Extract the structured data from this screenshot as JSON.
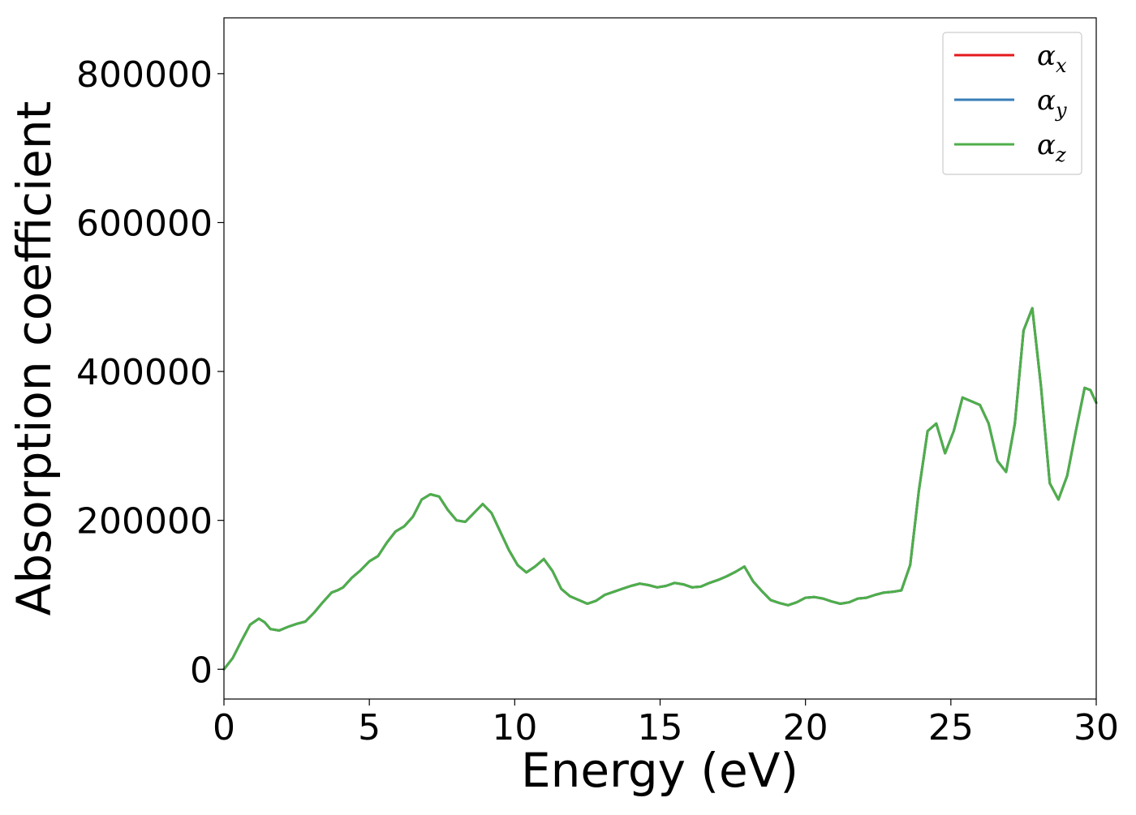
{
  "chart_data": {
    "type": "line",
    "title": "",
    "xlabel": "Energy (eV)",
    "ylabel": "Absorption coefficient",
    "xlim": [
      0,
      30
    ],
    "ylim": [
      -40000,
      875000
    ],
    "x_ticks": [
      0,
      5,
      10,
      15,
      20,
      25,
      30
    ],
    "x_tick_labels": [
      "0",
      "5",
      "10",
      "15",
      "20",
      "25",
      "30"
    ],
    "y_ticks": [
      0,
      200000,
      400000,
      600000,
      800000
    ],
    "y_tick_labels": [
      "0",
      "200000",
      "400000",
      "600000",
      "800000"
    ],
    "grid": false,
    "legend": {
      "position": "top-right",
      "entries": [
        {
          "label": "α",
          "sub": "x",
          "color": "#e41a1c"
        },
        {
          "label": "α",
          "sub": "y",
          "color": "#377eb8"
        },
        {
          "label": "α",
          "sub": "z",
          "color": "#4daf4a"
        }
      ]
    },
    "x": [
      0,
      0.3,
      0.6,
      0.9,
      1.2,
      1.4,
      1.6,
      1.9,
      2.2,
      2.5,
      2.8,
      3.1,
      3.4,
      3.7,
      3.9,
      4.1,
      4.4,
      4.7,
      5.0,
      5.3,
      5.6,
      5.9,
      6.2,
      6.5,
      6.8,
      7.1,
      7.4,
      7.7,
      8.0,
      8.3,
      8.6,
      8.9,
      9.2,
      9.5,
      9.8,
      10.1,
      10.4,
      10.7,
      11.0,
      11.3,
      11.6,
      11.9,
      12.2,
      12.5,
      12.8,
      13.1,
      13.4,
      13.7,
      14.0,
      14.3,
      14.6,
      14.9,
      15.2,
      15.5,
      15.8,
      16.1,
      16.4,
      16.7,
      17.0,
      17.3,
      17.6,
      17.9,
      18.2,
      18.5,
      18.8,
      19.1,
      19.4,
      19.7,
      20.0,
      20.3,
      20.6,
      20.9,
      21.2,
      21.5,
      21.8,
      22.1,
      22.4,
      22.7,
      23.0,
      23.3,
      23.6,
      23.9,
      24.2,
      24.5,
      24.8,
      25.1,
      25.4,
      25.7,
      26.0,
      26.3,
      26.6,
      26.9,
      27.2,
      27.5,
      27.8,
      28.1,
      28.4,
      28.7,
      29.0,
      29.3,
      29.6,
      29.8,
      30.0
    ],
    "series": [
      {
        "name": "α_x",
        "color": "#e41a1c",
        "values": [
          0,
          15000,
          38000,
          60000,
          68000,
          63000,
          54000,
          52000,
          57000,
          61000,
          64000,
          76000,
          90000,
          103000,
          106000,
          110000,
          123000,
          133000,
          145000,
          152000,
          170000,
          185000,
          192000,
          205000,
          228000,
          235000,
          232000,
          214000,
          200000,
          198000,
          210000,
          222000,
          210000,
          185000,
          160000,
          140000,
          130000,
          138000,
          148000,
          132000,
          108000,
          98000,
          93000,
          88000,
          92000,
          100000,
          104000,
          108000,
          112000,
          115000,
          113000,
          110000,
          112000,
          116000,
          114000,
          110000,
          111000,
          116000,
          120000,
          125000,
          131000,
          138000,
          118000,
          105000,
          93000,
          89000,
          86000,
          90000,
          96000,
          97000,
          95000,
          91000,
          88000,
          90000,
          95000,
          96000,
          100000,
          103000,
          104000,
          106000,
          140000,
          240000,
          320000,
          330000,
          290000,
          320000,
          365000,
          360000,
          355000,
          330000,
          280000,
          265000,
          330000,
          455000,
          485000,
          380000,
          250000,
          228000,
          260000,
          320000,
          378000,
          375000,
          358000
        ]
      },
      {
        "name": "α_y",
        "color": "#377eb8",
        "values": [
          0,
          15000,
          38000,
          60000,
          68000,
          63000,
          54000,
          52000,
          57000,
          61000,
          64000,
          76000,
          90000,
          103000,
          106000,
          110000,
          123000,
          133000,
          145000,
          152000,
          170000,
          185000,
          192000,
          205000,
          228000,
          235000,
          232000,
          214000,
          200000,
          198000,
          210000,
          222000,
          210000,
          185000,
          160000,
          140000,
          130000,
          138000,
          148000,
          132000,
          108000,
          98000,
          93000,
          88000,
          92000,
          100000,
          104000,
          108000,
          112000,
          115000,
          113000,
          110000,
          112000,
          116000,
          114000,
          110000,
          111000,
          116000,
          120000,
          125000,
          131000,
          138000,
          118000,
          105000,
          93000,
          89000,
          86000,
          90000,
          96000,
          97000,
          95000,
          91000,
          88000,
          90000,
          95000,
          96000,
          100000,
          103000,
          104000,
          106000,
          140000,
          240000,
          320000,
          330000,
          290000,
          320000,
          365000,
          360000,
          355000,
          330000,
          280000,
          265000,
          330000,
          455000,
          485000,
          380000,
          250000,
          228000,
          260000,
          320000,
          378000,
          375000,
          358000
        ]
      },
      {
        "name": "α_z",
        "color": "#4daf4a",
        "values": [
          0,
          15000,
          38000,
          60000,
          68000,
          63000,
          54000,
          52000,
          57000,
          61000,
          64000,
          76000,
          90000,
          103000,
          106000,
          110000,
          123000,
          133000,
          145000,
          152000,
          170000,
          185000,
          192000,
          205000,
          228000,
          235000,
          232000,
          214000,
          200000,
          198000,
          210000,
          222000,
          210000,
          185000,
          160000,
          140000,
          130000,
          138000,
          148000,
          132000,
          108000,
          98000,
          93000,
          88000,
          92000,
          100000,
          104000,
          108000,
          112000,
          115000,
          113000,
          110000,
          112000,
          116000,
          114000,
          110000,
          111000,
          116000,
          120000,
          125000,
          131000,
          138000,
          118000,
          105000,
          93000,
          89000,
          86000,
          90000,
          96000,
          97000,
          95000,
          91000,
          88000,
          90000,
          95000,
          96000,
          100000,
          103000,
          104000,
          106000,
          140000,
          240000,
          320000,
          330000,
          290000,
          320000,
          365000,
          360000,
          355000,
          330000,
          280000,
          265000,
          330000,
          455000,
          485000,
          380000,
          250000,
          228000,
          260000,
          320000,
          378000,
          375000,
          358000
        ]
      }
    ]
  }
}
